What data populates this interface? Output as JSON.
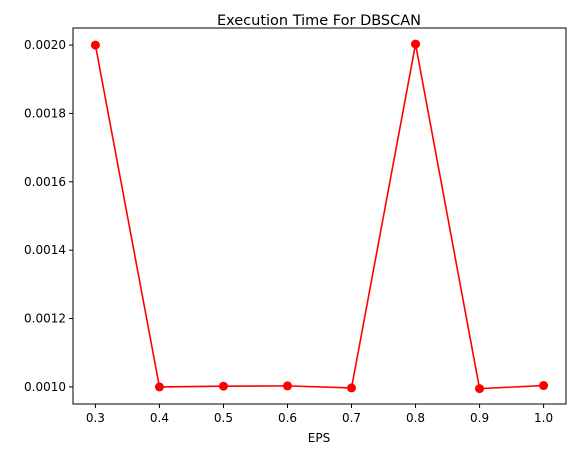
{
  "chart_data": {
    "type": "line",
    "title": "Execution Time For DBSCAN",
    "xlabel": "EPS",
    "ylabel": "",
    "x": [
      0.3,
      0.4,
      0.5,
      0.6,
      0.7,
      0.8,
      0.9,
      1.0
    ],
    "series": [
      {
        "values": [
          0.002,
          0.001,
          0.001002,
          0.001003,
          0.000997,
          0.002003,
          0.000995,
          0.001004
        ],
        "color": "#ff0000",
        "marker": "circle"
      }
    ],
    "xticks": [
      "0.3",
      "0.4",
      "0.5",
      "0.6",
      "0.7",
      "0.8",
      "0.9",
      "1.0"
    ],
    "yticks": [
      "0.0010",
      "0.0012",
      "0.0014",
      "0.0016",
      "0.0018",
      "0.0020"
    ],
    "xlim": [
      0.265,
      1.035
    ],
    "ylim": [
      0.00095,
      0.00205
    ],
    "grid": false
  }
}
